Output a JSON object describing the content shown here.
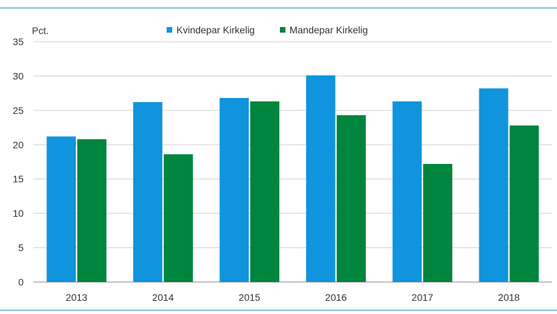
{
  "chart_data": {
    "type": "bar",
    "ylabel": "Pct.",
    "categories": [
      "2013",
      "2014",
      "2015",
      "2016",
      "2017",
      "2018"
    ],
    "series": [
      {
        "name": "Kvindepar Kirkelig",
        "color": "#0f94dd",
        "values": [
          21.2,
          26.2,
          26.8,
          30.1,
          26.3,
          28.2
        ]
      },
      {
        "name": "Mandepar Kirkelig",
        "color": "#00853e",
        "values": [
          20.8,
          18.6,
          26.3,
          24.3,
          17.2,
          22.8
        ]
      }
    ],
    "ylim": [
      0,
      35
    ],
    "yticks": [
      "0",
      "5",
      "10",
      "15",
      "20",
      "25",
      "30",
      "35"
    ],
    "grid": true,
    "legend": "top-center"
  }
}
